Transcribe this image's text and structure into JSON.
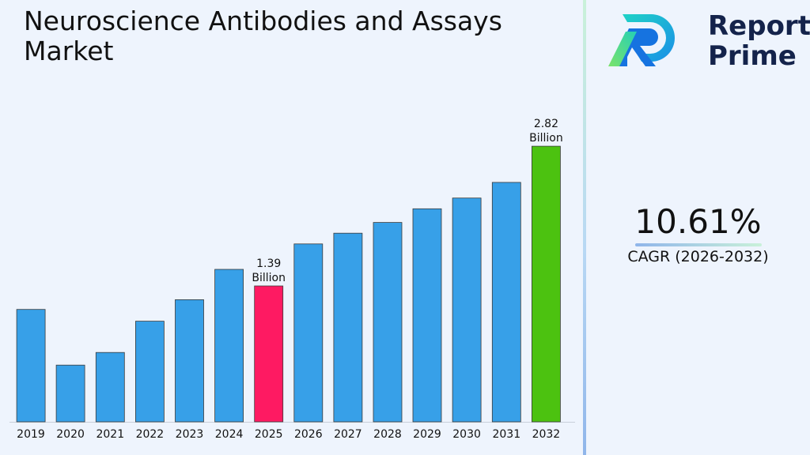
{
  "chart_data": {
    "type": "bar",
    "title": "Neuroscience Antibodies and Assays Market",
    "categories": [
      "2019",
      "2020",
      "2021",
      "2022",
      "2023",
      "2024",
      "2025",
      "2026",
      "2027",
      "2028",
      "2029",
      "2030",
      "2031",
      "2032"
    ],
    "values": [
      1.15,
      0.58,
      0.71,
      1.03,
      1.25,
      1.56,
      1.39,
      1.82,
      1.93,
      2.04,
      2.18,
      2.29,
      2.45,
      2.82
    ],
    "ylim": [
      0,
      3.5
    ],
    "grid": false,
    "legend": "none",
    "colors": {
      "default": "#37a0e8",
      "2025": "#fe1a62",
      "2032": "#4cc210"
    },
    "annotations": [
      {
        "category": "2025",
        "value_text": "1.39",
        "unit_text": "Billion"
      },
      {
        "category": "2032",
        "value_text": "2.82",
        "unit_text": "Billion"
      }
    ]
  },
  "brand": {
    "line1": "Report",
    "line2": "Prime",
    "logo_icon": "report-prime-logo-icon"
  },
  "cagr": {
    "value": "10.61%",
    "label": "CAGR (2026-2032)"
  }
}
